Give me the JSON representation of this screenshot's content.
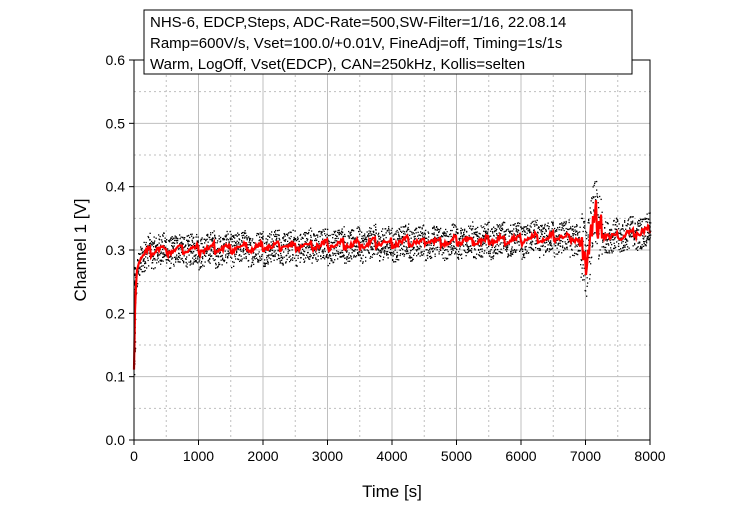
{
  "chart_data": {
    "type": "scatter",
    "title_lines": [
      "NHS-6, EDCP,Steps, ADC-Rate=500,SW-Filter=1/16, 22.08.14",
      "Ramp=600V/s, Vset=100.0/+0.01V, FineAdj=off, Timing=1s/1s",
      "Warm, LogOff, Vset(EDCP), CAN=250kHz, Kollis=selten"
    ],
    "xlabel": "Time [s]",
    "ylabel": "Channel 1 [V]",
    "xlim": [
      0,
      8000
    ],
    "ylim": [
      0.0,
      0.6
    ],
    "x_ticks": [
      0,
      1000,
      2000,
      3000,
      4000,
      5000,
      6000,
      7000,
      8000
    ],
    "y_ticks": [
      "0.0",
      "0.1",
      "0.2",
      "0.3",
      "0.4",
      "0.5",
      "0.6"
    ],
    "grid": true,
    "legend_placement": "top",
    "colors": {
      "raw": "#000000",
      "filtered": "#ff0000",
      "grid": "#bfbfbf"
    },
    "series": [
      {
        "style": "scatter",
        "color": "#000000",
        "x": [
          0,
          20,
          50,
          100,
          150,
          200,
          300,
          400,
          500,
          600,
          800,
          1000,
          1200,
          1400,
          1600,
          1800,
          2000,
          2200,
          2400,
          2600,
          2800,
          3000,
          3200,
          3400,
          3600,
          3800,
          4000,
          4200,
          4400,
          4600,
          4800,
          5000,
          5200,
          5400,
          5600,
          5800,
          6000,
          6200,
          6400,
          6600,
          6800,
          6900,
          6950,
          7000,
          7050,
          7100,
          7150,
          7200,
          7300,
          7400,
          7600,
          7800,
          8000
        ],
        "y": [
          0.12,
          0.24,
          0.275,
          0.285,
          0.29,
          0.295,
          0.3,
          0.302,
          0.298,
          0.3,
          0.302,
          0.3,
          0.303,
          0.302,
          0.305,
          0.303,
          0.305,
          0.306,
          0.304,
          0.306,
          0.308,
          0.307,
          0.31,
          0.308,
          0.31,
          0.312,
          0.31,
          0.313,
          0.312,
          0.314,
          0.312,
          0.315,
          0.316,
          0.314,
          0.316,
          0.318,
          0.317,
          0.319,
          0.318,
          0.32,
          0.32,
          0.315,
          0.3,
          0.28,
          0.31,
          0.345,
          0.36,
          0.33,
          0.325,
          0.32,
          0.325,
          0.328,
          0.33
        ],
        "spread": 0.025
      },
      {
        "style": "line",
        "color": "#ff0000",
        "x": [
          0,
          20,
          50,
          100,
          150,
          200,
          300,
          400,
          500,
          600,
          800,
          1000,
          1200,
          1400,
          1600,
          1800,
          2000,
          2200,
          2400,
          2600,
          2800,
          3000,
          3200,
          3400,
          3600,
          3800,
          4000,
          4200,
          4400,
          4600,
          4800,
          5000,
          5200,
          5400,
          5600,
          5800,
          6000,
          6200,
          6400,
          6600,
          6800,
          6900,
          6950,
          7000,
          7050,
          7100,
          7150,
          7200,
          7300,
          7400,
          7600,
          7800,
          8000
        ],
        "y": [
          0.12,
          0.24,
          0.275,
          0.285,
          0.29,
          0.295,
          0.3,
          0.302,
          0.298,
          0.3,
          0.302,
          0.3,
          0.303,
          0.302,
          0.305,
          0.303,
          0.305,
          0.306,
          0.304,
          0.306,
          0.308,
          0.307,
          0.31,
          0.308,
          0.31,
          0.312,
          0.31,
          0.313,
          0.312,
          0.314,
          0.312,
          0.315,
          0.316,
          0.314,
          0.316,
          0.318,
          0.317,
          0.319,
          0.318,
          0.32,
          0.32,
          0.315,
          0.3,
          0.28,
          0.31,
          0.345,
          0.36,
          0.33,
          0.325,
          0.32,
          0.325,
          0.328,
          0.33
        ]
      }
    ]
  }
}
